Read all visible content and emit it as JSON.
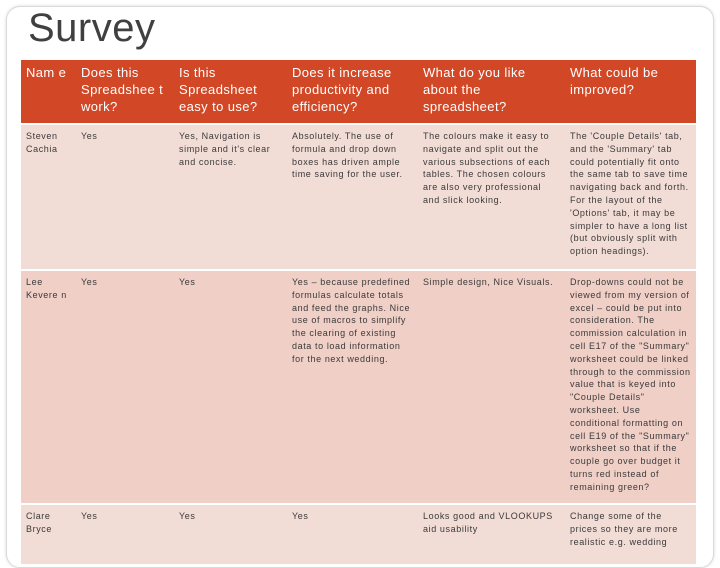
{
  "title": "Survey",
  "table": {
    "headers": [
      "Nam e",
      "Does this Spreadshee t work?",
      "Is this Spreadsheet easy to use?",
      "Does it increase productivity and efficiency?",
      "What do you like about the spreadsheet?",
      "What could be improved?"
    ],
    "rows": [
      {
        "name": "Steven Cachia",
        "works": "Yes",
        "easy": "Yes, Navigation is simple and it's clear and concise.",
        "productivity": "Absolutely. The use of formula and drop down boxes has driven ample time saving for the user.",
        "likes": "The colours make it easy to navigate and split out the various subsections of each tables. The chosen colours are also very professional and slick looking.",
        "improve": "The 'Couple Details' tab, and the 'Summary' tab could potentially fit onto the same tab to save time navigating back and forth. For the layout of the 'Options' tab, it may be simpler to have a long list (but obviously split with option headings)."
      },
      {
        "name": "Lee Kevere n",
        "works": "Yes",
        "easy": "Yes",
        "productivity": "Yes – because predefined formulas calculate totals and feed the graphs. Nice use of macros to simplify the clearing of existing data to load information for the next wedding.",
        "likes": "Simple design, Nice Visuals.",
        "improve": "Drop-downs could not be viewed from my version of excel – could be put into consideration. The commission calculation in cell E17 of the \"Summary\" worksheet could be linked through to the commission value that is keyed into \"Couple Details\" worksheet. Use conditional formatting on cell E19 of the \"Summary\" worksheet so that if the couple go over budget it turns red instead of remaining green?"
      },
      {
        "name": "Clare Bryce",
        "works": "Yes",
        "easy": "Yes",
        "productivity": "Yes",
        "likes": "Looks good and VLOOKUPS aid usability",
        "improve": "Change some of the prices so they are more realistic e.g. wedding"
      }
    ]
  }
}
